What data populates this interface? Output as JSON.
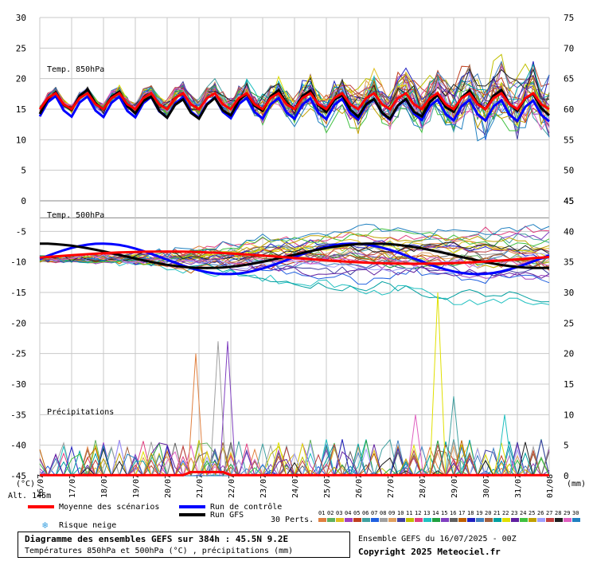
{
  "chart_data": {
    "type": "line",
    "title": "Diagramme des ensembles GEFS sur 384h : 45.5N 9.2E",
    "subtitle": "Températures 850hPa et 500hPa (°C) , précipitations (mm)",
    "run": "Ensemble GEFS du 16/07/2025 - 00Z",
    "copyright": "Copyright 2025 Meteociel.fr",
    "altitude_label": "Alt. 145m",
    "left_unit": "(°C)",
    "right_unit": "(mm)",
    "panel_labels": {
      "t850": "Temp. 850hPa",
      "t500": "Temp. 500hPa",
      "precip": "Précipitations"
    },
    "x_tick_labels": [
      "16/07",
      "17/07",
      "18/07",
      "19/07",
      "20/07",
      "21/07",
      "22/07",
      "23/07",
      "24/07",
      "25/07",
      "26/07",
      "27/07",
      "28/07",
      "29/07",
      "30/07",
      "31/07",
      "01/08"
    ],
    "left_axis": {
      "ylim": [
        -45,
        30
      ],
      "ticks": [
        30,
        25,
        20,
        15,
        10,
        5,
        0,
        -5,
        -10,
        -15,
        -20,
        -25,
        -30,
        -35,
        -40,
        -45
      ]
    },
    "right_axis_850": {
      "ticks": [
        75,
        70,
        65,
        60,
        55,
        50,
        45
      ]
    },
    "right_axis_500": {
      "ticks": [
        45,
        40,
        35,
        30,
        25,
        20,
        15,
        10,
        5,
        0
      ]
    },
    "grid": true,
    "legend": {
      "mean": "Moyenne des scénarios",
      "control": "Run de contrôle",
      "gfs": "Run GFS",
      "snow": "Risque neige",
      "perts": "30 Perts.",
      "pert_labels": [
        "01",
        "02",
        "03",
        "04",
        "05",
        "06",
        "07",
        "08",
        "09",
        "10",
        "11",
        "12",
        "13",
        "14",
        "15",
        "16",
        "17",
        "18",
        "19",
        "20",
        "21",
        "22",
        "23",
        "24",
        "25",
        "26",
        "27",
        "28",
        "29",
        "30"
      ]
    },
    "pert_colors": [
      "#e08040",
      "#60b060",
      "#e0c020",
      "#a040c0",
      "#c04020",
      "#40a0a0",
      "#2060e0",
      "#a0a0a0",
      "#e0a060",
      "#4040a0",
      "#c0c000",
      "#e04080",
      "#20c0c0",
      "#20a040",
      "#8040c0",
      "#606060",
      "#c06000",
      "#2020c0",
      "#4080c0",
      "#a06040",
      "#00a0a0",
      "#e0e000",
      "#6020a0",
      "#40c040",
      "#c0a000",
      "#a0a0ff",
      "#c04040",
      "#202020",
      "#e060c0",
      "#2080c0"
    ],
    "series_colors": {
      "mean": "#ff0000",
      "control": "#0000ff",
      "gfs": "#000000"
    },
    "series": [
      {
        "name": "Moyenne des scénarios",
        "t850_start": 18,
        "t850_end": 16,
        "t500_start": -9,
        "t500_end": -10,
        "precip_peak": 3
      },
      {
        "name": "Run de contrôle"
      },
      {
        "name": "Run GFS"
      }
    ],
    "precip_peaks_mm": [
      {
        "day": 4.9,
        "value": 20
      },
      {
        "day": 5.6,
        "value": 22
      },
      {
        "day": 5.9,
        "value": 22
      },
      {
        "day": 12.5,
        "value": 30
      },
      {
        "day": 11.8,
        "value": 10
      },
      {
        "day": 13.0,
        "value": 13
      },
      {
        "day": 14.6,
        "value": 10
      }
    ]
  }
}
